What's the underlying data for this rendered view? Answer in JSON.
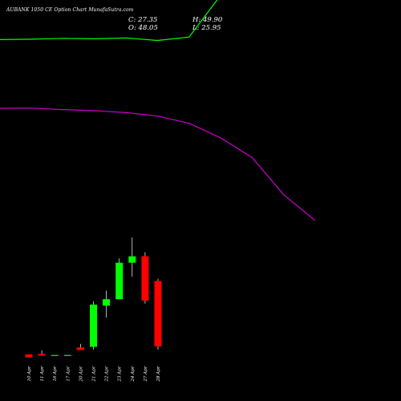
{
  "header": {
    "title": "AUBANK 1050  CE Option  Chart MunafaSutra.com",
    "close": "C: 27.35",
    "open": "O: 48.05",
    "high": "H: 49.90",
    "low": "L: 25.95"
  },
  "colors": {
    "background": "#000000",
    "up": "#00ff00",
    "down": "#ff0000",
    "upper_line": "#00ff00",
    "lower_line": "#cc00cc",
    "wick": "#ffffff",
    "text": "#ffffff"
  },
  "chart_data": {
    "type": "candlestick",
    "categories": [
      "10 Apr",
      "11 Apr",
      "16 Apr",
      "17 Apr",
      "20 Apr",
      "21 Apr",
      "22 Apr",
      "23 Apr",
      "24 Apr",
      "27 Apr",
      "28 Apr"
    ],
    "candles": [
      {
        "open": 2.3,
        "high": 2.3,
        "low": 0.9,
        "close": 0.9
      },
      {
        "open": 2.5,
        "high": 4.2,
        "low": 1.7,
        "close": 1.7
      },
      {
        "open": 2.0,
        "high": 2.0,
        "low": 2.0,
        "close": 2.0
      },
      {
        "open": 2.0,
        "high": 2.0,
        "low": 2.0,
        "close": 2.0
      },
      {
        "open": 5.5,
        "high": 7.2,
        "low": 4.3,
        "close": 4.3
      },
      {
        "open": 5.8,
        "high": 27.0,
        "low": 4.5,
        "close": 25.5
      },
      {
        "open": 25.0,
        "high": 32.0,
        "low": 19.5,
        "close": 28.0
      },
      {
        "open": 28.0,
        "high": 47.0,
        "low": 28.0,
        "close": 45.0
      },
      {
        "open": 45.0,
        "high": 56.8,
        "low": 38.5,
        "close": 48.0
      },
      {
        "open": 48.05,
        "high": 49.9,
        "low": 25.95,
        "close": 27.35
      },
      {
        "open": 36.5,
        "high": 37.5,
        "low": 4.5,
        "close": 6.0
      }
    ],
    "upper_line": [
      149,
      149.2,
      149.6,
      149.4,
      149.8,
      148.6,
      150.2,
      169.7,
      184.2,
      183.8,
      183.4
    ],
    "lower_line": [
      117,
      117.1,
      116.4,
      115.9,
      115.0,
      113.4,
      110.0,
      103.2,
      94.0,
      76.7,
      64.7
    ],
    "ylim": [
      -1.5,
      160
    ]
  }
}
